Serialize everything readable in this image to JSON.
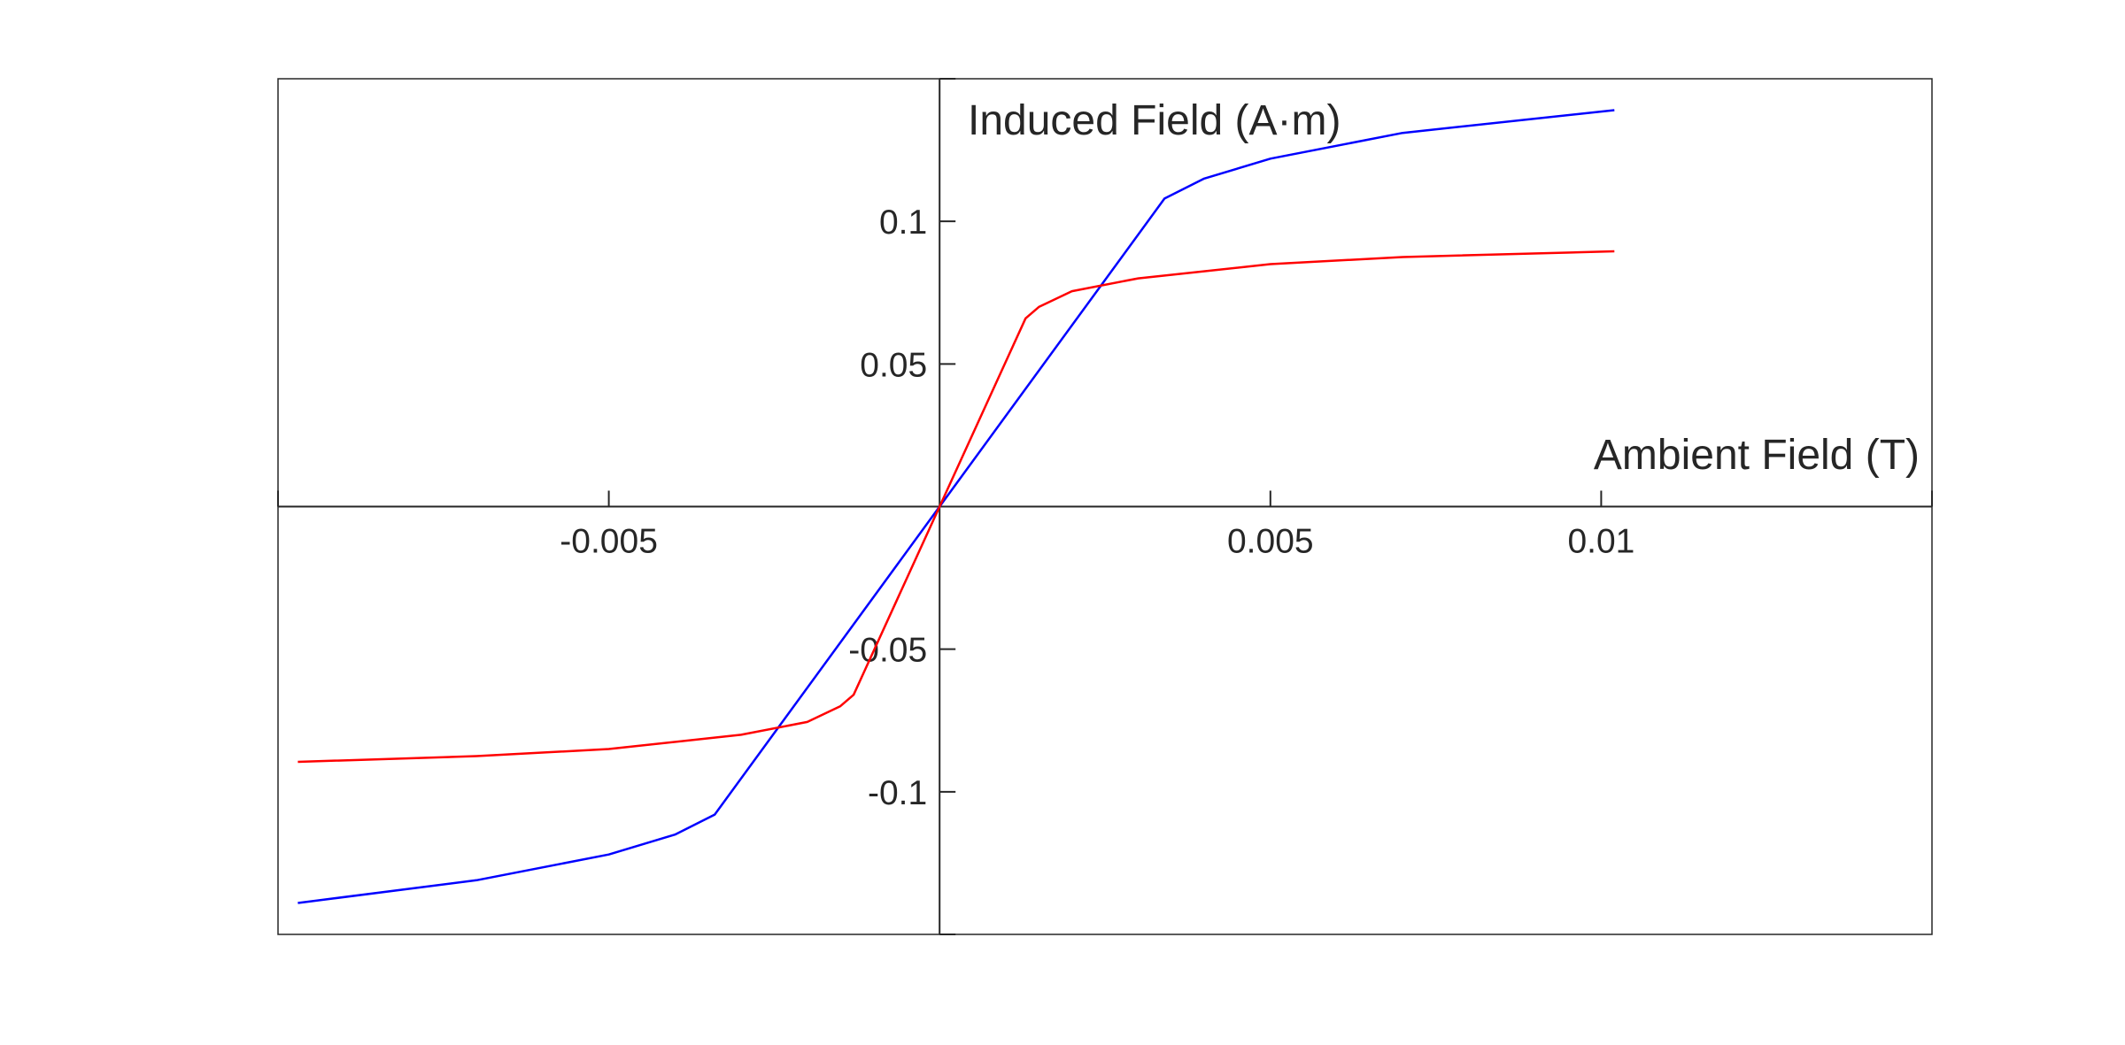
{
  "chart_data": {
    "type": "line",
    "title": "",
    "xlabel": "Ambient Field (T)",
    "ylabel": "Induced Field (A·m)",
    "xlim": [
      -0.01,
      0.015
    ],
    "ylim": [
      -0.15,
      0.15
    ],
    "x_ticks": [
      -0.005,
      0.005,
      0.01
    ],
    "x_tick_labels": [
      "-0.005",
      "0.005",
      "0.01"
    ],
    "y_ticks": [
      0.1,
      0.05,
      -0.05,
      -0.1
    ],
    "y_tick_labels": [
      "0.1",
      "0.05",
      "-0.05",
      "-0.1"
    ],
    "grid": false,
    "legend": "none",
    "axes_style": "origin-crossing axes inside a box",
    "series": [
      {
        "color": "#0000ff",
        "x": [
          -0.0097,
          -0.007,
          -0.005,
          -0.004,
          -0.0034,
          0,
          0.0034,
          0.004,
          0.005,
          0.007,
          0.0102
        ],
        "y": [
          -0.139,
          -0.131,
          -0.122,
          -0.115,
          -0.108,
          0,
          0.108,
          0.115,
          0.122,
          0.131,
          0.139
        ]
      },
      {
        "color": "#ff0000",
        "x": [
          -0.0097,
          -0.007,
          -0.005,
          -0.003,
          -0.002,
          -0.0015,
          -0.0013,
          0,
          0.0013,
          0.0015,
          0.002,
          0.003,
          0.005,
          0.007,
          0.0102
        ],
        "y": [
          -0.0895,
          -0.0875,
          -0.085,
          -0.08,
          -0.0755,
          -0.07,
          -0.066,
          0,
          0.066,
          0.07,
          0.0755,
          0.08,
          0.085,
          0.0875,
          0.0895
        ]
      }
    ]
  }
}
